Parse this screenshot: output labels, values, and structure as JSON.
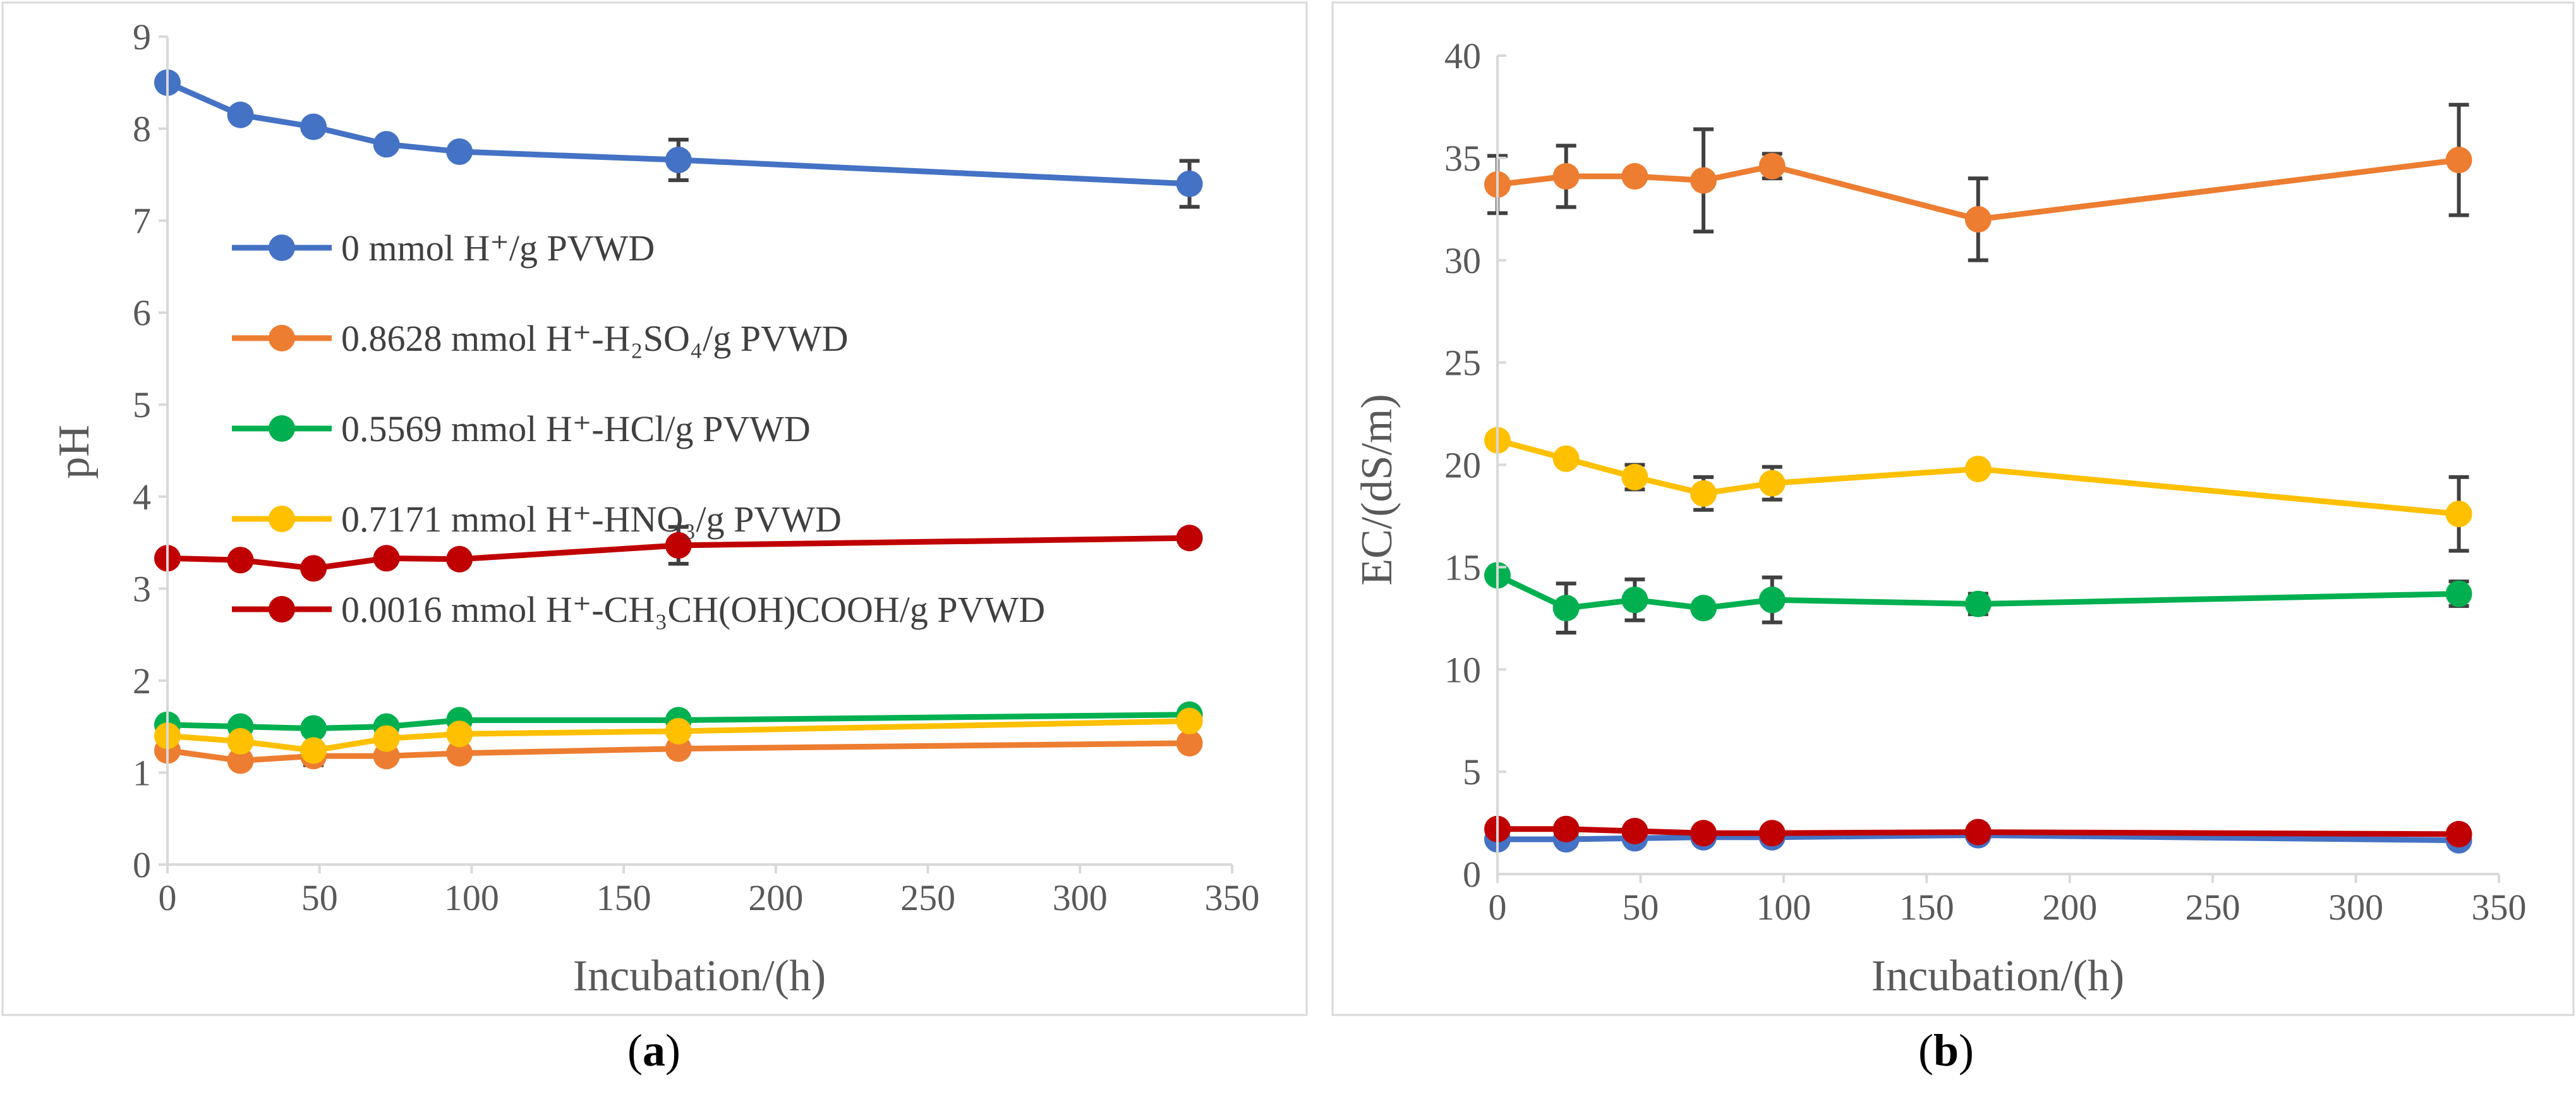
{
  "chart_data": [
    {
      "type": "line",
      "panel": "a",
      "panel_label": "a",
      "xlabel": "Incubation/(h)",
      "ylabel": "pH",
      "xlim": [
        0,
        350
      ],
      "ylim": [
        0,
        9
      ],
      "xticks": [
        0,
        50,
        100,
        150,
        200,
        250,
        300,
        350
      ],
      "yticks": [
        0,
        1,
        2,
        3,
        4,
        5,
        6,
        7,
        8,
        9
      ],
      "grid": false,
      "legend_position": "upper-left inside",
      "x": [
        0,
        24,
        48,
        72,
        96,
        168,
        336
      ],
      "series": [
        {
          "name": "0 mmol H⁺/g PVWD",
          "color": "#4472c4",
          "values": [
            8.5,
            8.15,
            8.02,
            7.83,
            7.75,
            7.66,
            7.4
          ],
          "errors": [
            0,
            0,
            0,
            0,
            0,
            0.22,
            0.25
          ]
        },
        {
          "name": "0.8628 mmol H⁺-H₂SO₄/g PVWD",
          "color": "#ed7d31",
          "values": [
            1.24,
            1.13,
            1.18,
            1.18,
            1.21,
            1.26,
            1.32
          ],
          "errors": [
            0,
            0,
            0.1,
            0,
            0,
            0,
            0
          ]
        },
        {
          "name": "0.5569 mmol H⁺-HCl/g PVWD",
          "color": "#00b050",
          "values": [
            1.52,
            1.5,
            1.48,
            1.5,
            1.57,
            1.57,
            1.63
          ],
          "errors": [
            0,
            0,
            0,
            0,
            0,
            0,
            0
          ]
        },
        {
          "name": "0.7171 mmol H⁺-HNO₃/g PVWD",
          "color": "#ffc000",
          "values": [
            1.4,
            1.34,
            1.24,
            1.37,
            1.42,
            1.45,
            1.56
          ],
          "errors": [
            0,
            0,
            0,
            0,
            0,
            0,
            0
          ]
        },
        {
          "name": "0.0016 mmol H⁺-CH₃CH(OH)COOH/g PVWD",
          "color": "#c00000",
          "values": [
            3.33,
            3.31,
            3.22,
            3.33,
            3.32,
            3.47,
            3.55
          ],
          "errors": [
            0,
            0,
            0,
            0,
            0,
            0.2,
            0
          ]
        }
      ]
    },
    {
      "type": "line",
      "panel": "b",
      "panel_label": "b",
      "xlabel": "Incubation/(h)",
      "ylabel": "EC/(dS/m)",
      "xlim": [
        0,
        350
      ],
      "ylim": [
        0,
        40
      ],
      "xticks": [
        0,
        50,
        100,
        150,
        200,
        250,
        300,
        350
      ],
      "yticks": [
        0,
        5,
        10,
        15,
        20,
        25,
        30,
        35,
        40
      ],
      "grid": false,
      "x": [
        0,
        24,
        48,
        72,
        96,
        168,
        336
      ],
      "series": [
        {
          "name": "0 mmol H⁺/g PVWD",
          "color": "#4472c4",
          "values": [
            1.7,
            1.7,
            1.75,
            1.8,
            1.8,
            1.9,
            1.65
          ],
          "errors": [
            0,
            0,
            0,
            0,
            0,
            0,
            0
          ]
        },
        {
          "name": "0.8628 mmol H⁺-H₂SO₄/g PVWD",
          "color": "#ed7d31",
          "values": [
            33.7,
            34.1,
            34.1,
            33.9,
            34.6,
            32.0,
            34.9
          ],
          "errors": [
            1.4,
            1.5,
            0,
            2.5,
            0.6,
            2.0,
            2.7
          ]
        },
        {
          "name": "0.5569 mmol H⁺-HCl/g PVWD",
          "color": "#00b050",
          "values": [
            14.6,
            13.0,
            13.4,
            13.0,
            13.4,
            13.2,
            13.7
          ],
          "errors": [
            0,
            1.2,
            1.0,
            0,
            1.1,
            0.5,
            0.6
          ]
        },
        {
          "name": "0.7171 mmol H⁺-HNO₃/g PVWD",
          "color": "#ffc000",
          "values": [
            21.2,
            20.3,
            19.4,
            18.6,
            19.1,
            19.8,
            17.6
          ],
          "errors": [
            0,
            0,
            0.6,
            0.8,
            0.8,
            0,
            1.8
          ]
        },
        {
          "name": "0.0016 mmol H⁺-CH₃CH(OH)COOH/g PVWD",
          "color": "#c00000",
          "values": [
            2.2,
            2.2,
            2.1,
            2.0,
            2.0,
            2.05,
            1.95
          ],
          "errors": [
            0,
            0,
            0,
            0,
            0,
            0,
            0
          ]
        }
      ]
    }
  ]
}
